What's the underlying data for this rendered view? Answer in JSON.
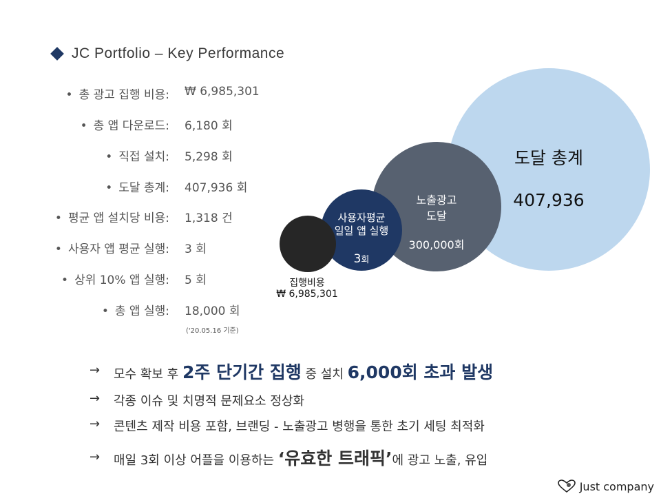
{
  "title": "JC Portfolio – Key Performance",
  "metrics": [
    {
      "label": "총 광고 집행 비용:",
      "value": "₩ 6,985,301"
    },
    {
      "label": "총 앱 다운로드:",
      "value": "6,180 회"
    },
    {
      "label": "직접 설치:",
      "value": "5,298 회"
    },
    {
      "label": "도달 총계:",
      "value": "407,936 회"
    },
    {
      "label": "평균 앱 설치당 비용:",
      "value": "1,318 건"
    },
    {
      "label": "사용자 앱 평균 실행:",
      "value": "3 회"
    },
    {
      "label": "상위 10% 앱 실행:",
      "value": "5 회"
    },
    {
      "label": "총 앱 실행:",
      "value": "18,000 회"
    }
  ],
  "note": "('20.05.16 기준)",
  "bubbles": {
    "cost": {
      "label_line1": "집행비용",
      "label_line2": "₩ 6,985,301",
      "color": "#262626"
    },
    "daily_runs": {
      "label_line1": "사용자평균",
      "label_line2": "일일 앱 실행",
      "value_num": "3",
      "value_unit": "회",
      "color": "#1f3864"
    },
    "impressions": {
      "label_line1": "노출광고",
      "label_line2": "도달",
      "value": "300,000회",
      "color": "#576170"
    },
    "reach": {
      "label": "도달 총계",
      "value": "407,936",
      "color": "#bdd7ee"
    }
  },
  "bullets": [
    {
      "parts": [
        {
          "t": "모수 확보 후 ",
          "s": "small"
        },
        {
          "t": "2주 단기간 집행",
          "s": "big"
        },
        {
          "t": " 중 설치 ",
          "s": "small"
        },
        {
          "t": "6,000회 초과 발생",
          "s": "big"
        }
      ]
    },
    {
      "parts": [
        {
          "t": "각종 이슈 및 치명적 문제요소 정상화",
          "s": "small"
        }
      ]
    },
    {
      "parts": [
        {
          "t": "콘텐츠 제작 비용 포함, 브랜딩 - 노출광고 병행을 통한 초기 세팅 최적화",
          "s": "small"
        }
      ]
    },
    {
      "parts": [
        {
          "t": "매일 3회 이상 어플을 이용하는 ",
          "s": "small"
        },
        {
          "t": "‘유효한 트래픽’",
          "s": "quote-big"
        },
        {
          "t": "에 광고 노출, 유입",
          "s": "small"
        }
      ]
    }
  ],
  "arrow_symbol": "→",
  "logo_text": "Just company"
}
